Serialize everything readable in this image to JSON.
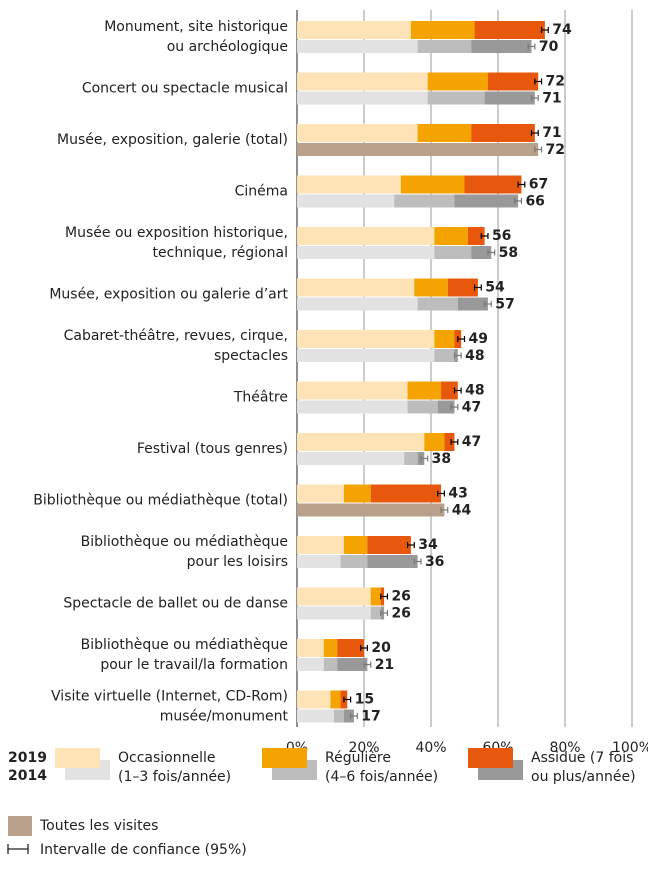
{
  "chart_data": {
    "type": "bar",
    "orientation": "horizontal",
    "stacked": true,
    "categories": [
      [
        "Monument, site historique",
        "ou archéologique"
      ],
      [
        "Concert ou spectacle musical"
      ],
      [
        "Musée, exposition, galerie (total)"
      ],
      [
        "Cinéma"
      ],
      [
        "Musée ou exposition historique,",
        "technique, régional"
      ],
      [
        "Musée, exposition ou galerie d’art"
      ],
      [
        "Cabaret-théâtre, revues, cirque,",
        "spectacles"
      ],
      [
        "Théâtre"
      ],
      [
        "Festival (tous genres)"
      ],
      [
        "Bibliothèque ou médiathèque (total)"
      ],
      [
        "Bibliothèque ou médiathèque",
        "pour les loisirs"
      ],
      [
        "Spectacle de ballet ou de danse"
      ],
      [
        "Bibliothèque ou médiathèque",
        "pour le travail/la formation"
      ],
      [
        "Visite virtuelle (Internet, CD-Rom)",
        "musée/monument"
      ]
    ],
    "years": [
      "2019",
      "2014"
    ],
    "series": [
      {
        "name": [
          "Occasionnelle",
          "(1–3 fois/année)"
        ],
        "colors": [
          "#fde3b5",
          "#e2e2e2"
        ],
        "values_2019": [
          34,
          39,
          36,
          31,
          41,
          35,
          41,
          33,
          38,
          14,
          14,
          22,
          8,
          10
        ],
        "values_2014": [
          36,
          39,
          null,
          29,
          41,
          36,
          41,
          33,
          32,
          null,
          13,
          22,
          8,
          11
        ]
      },
      {
        "name": [
          "Régulière",
          "(4–6 fois/année)"
        ],
        "colors": [
          "#f5a300",
          "#bdbdbd"
        ],
        "values_2019": [
          19,
          18,
          16,
          19,
          10,
          10,
          6,
          10,
          6,
          8,
          7,
          3,
          4,
          3
        ],
        "values_2014": [
          16,
          17,
          null,
          18,
          11,
          12,
          6,
          9,
          4,
          null,
          8,
          3,
          4,
          3
        ]
      },
      {
        "name": [
          "Assidue (7 fois",
          "ou plus/année)"
        ],
        "colors": [
          "#e8580c",
          "#999999"
        ],
        "values_2019": [
          21,
          15,
          19,
          17,
          5,
          9,
          2,
          5,
          3,
          21,
          13,
          1,
          8,
          2
        ],
        "values_2014": [
          18,
          15,
          null,
          19,
          6,
          9,
          1,
          5,
          2,
          null,
          15,
          1,
          9,
          3
        ]
      }
    ],
    "all_visits": {
      "name": "Toutes les visites",
      "color": "#b9a08a",
      "values_2014": [
        null,
        null,
        72,
        null,
        null,
        null,
        null,
        null,
        null,
        44,
        null,
        null,
        null,
        null
      ]
    },
    "totals_2019": [
      74,
      72,
      71,
      67,
      56,
      54,
      49,
      48,
      47,
      43,
      34,
      26,
      20,
      15
    ],
    "totals_2014": [
      70,
      71,
      72,
      66,
      58,
      57,
      48,
      47,
      38,
      44,
      36,
      26,
      21,
      17
    ],
    "errors_2019": [
      1,
      1,
      1,
      1,
      1,
      1,
      1,
      1,
      1,
      1,
      1,
      1,
      1,
      1
    ],
    "errors_2014": [
      1,
      1,
      1,
      1,
      1,
      1,
      1,
      1,
      1,
      1,
      1,
      1,
      1,
      1
    ],
    "confidence_label": "Intervalle de confiance (95%)",
    "xlim": [
      0,
      100
    ],
    "xticks": [
      {
        "value": 0,
        "label": "0%"
      },
      {
        "value": 20,
        "label": "20%"
      },
      {
        "value": 40,
        "label": "40%"
      },
      {
        "value": 60,
        "label": "60%"
      },
      {
        "value": 80,
        "label": "80%"
      },
      {
        "value": 100,
        "label": "100%"
      }
    ],
    "grid": true
  }
}
